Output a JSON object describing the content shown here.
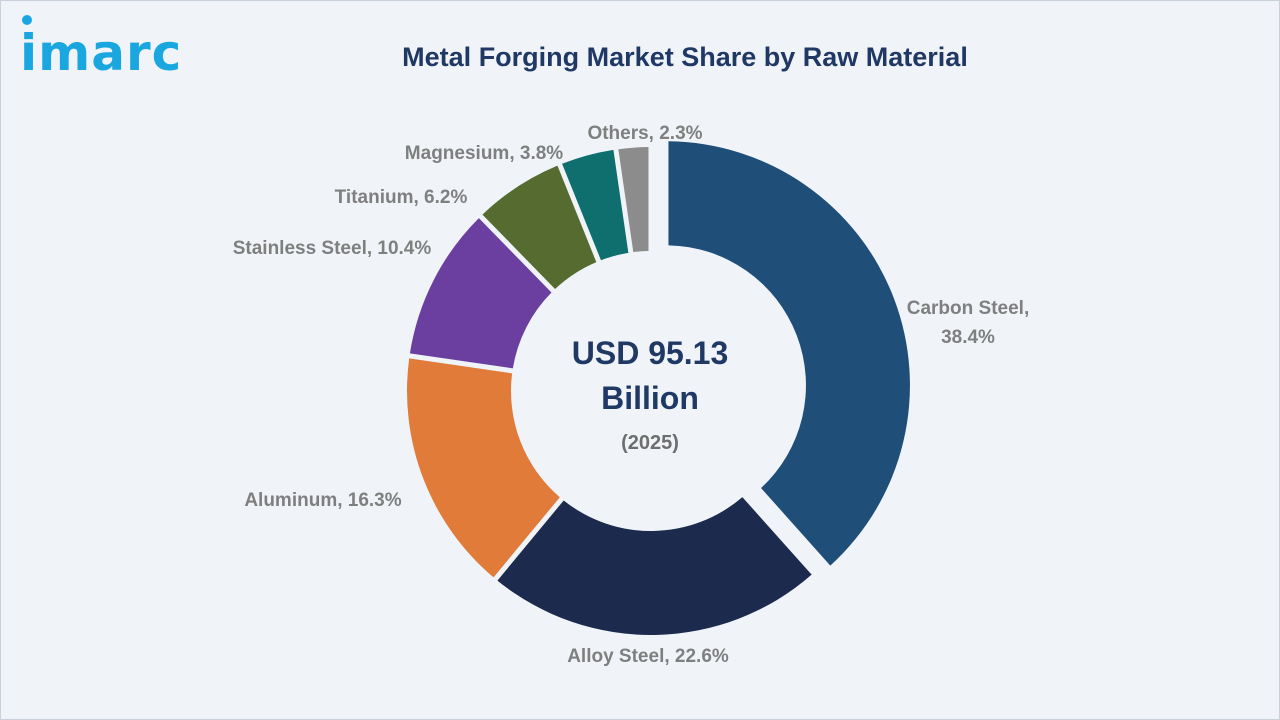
{
  "brand": {
    "logo_text": "imarc",
    "logo_color": "#1aa7e0"
  },
  "chart_data": {
    "type": "pie",
    "title": "Metal Forging Market Share by Raw Material",
    "center_text": {
      "line1": "USD 95.13",
      "line2": "Billion",
      "year": "(2025)"
    },
    "slices": [
      {
        "label": "Carbon Steel",
        "value": 38.4,
        "color": "#1f4e79",
        "exploded": true
      },
      {
        "label": "Alloy Steel",
        "value": 22.6,
        "color": "#1c2a4d"
      },
      {
        "label": "Aluminum",
        "value": 16.3,
        "color": "#e07b39"
      },
      {
        "label": "Stainless Steel",
        "value": 10.4,
        "color": "#6b3fa0"
      },
      {
        "label": "Titanium",
        "value": 6.2,
        "color": "#556b2f"
      },
      {
        "label": "Magnesium",
        "value": 3.8,
        "color": "#0f6e6e"
      },
      {
        "label": "Others",
        "value": 2.3,
        "color": "#8c8c8c"
      }
    ],
    "slice_labels": [
      {
        "lines": [
          "Carbon Steel,",
          "38.4%"
        ]
      },
      {
        "lines": [
          "Alloy Steel, 22.6%"
        ]
      },
      {
        "lines": [
          "Aluminum, 16.3%"
        ]
      },
      {
        "lines": [
          "Stainless Steel, 10.4%"
        ]
      },
      {
        "lines": [
          "Titanium, 6.2%"
        ]
      },
      {
        "lines": [
          "Magnesium, 3.8%"
        ]
      },
      {
        "lines": [
          "Others, 2.3%"
        ]
      }
    ]
  }
}
